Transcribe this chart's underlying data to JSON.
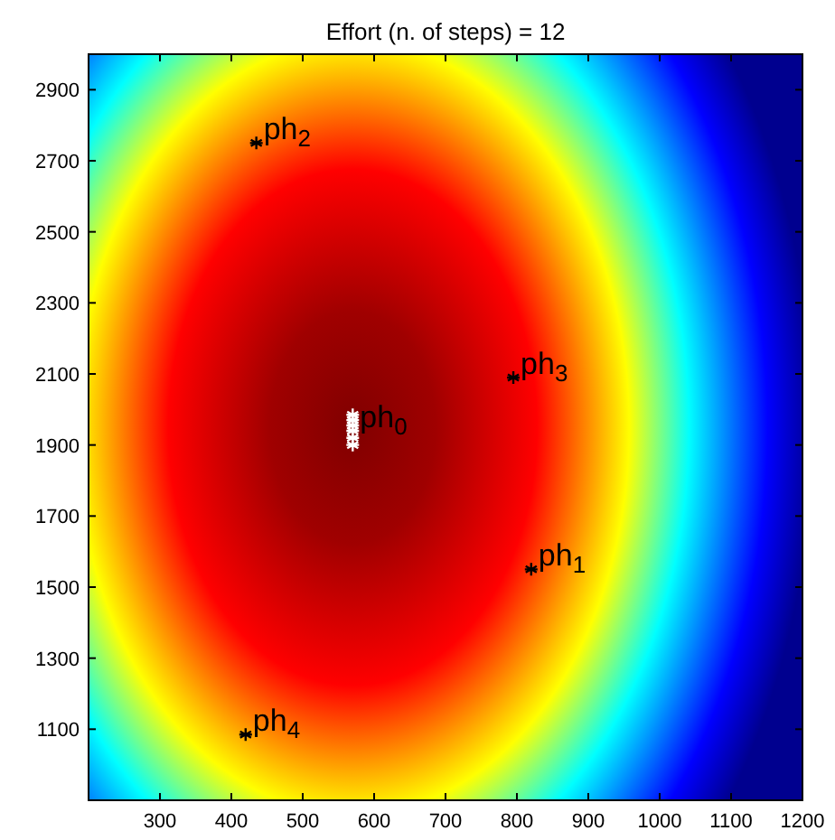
{
  "chart_data": {
    "type": "scatter",
    "title": "Effort (n. of steps) = 12",
    "xlim": [
      200,
      1200
    ],
    "ylim": [
      900,
      3000
    ],
    "xticks": [
      300,
      400,
      500,
      600,
      700,
      800,
      900,
      1000,
      1100,
      1200
    ],
    "yticks": [
      1100,
      1300,
      1500,
      1700,
      1900,
      2100,
      2300,
      2500,
      2700,
      2900
    ],
    "marker": "cross",
    "series": [
      {
        "color": "#ffffff",
        "x": [
          570,
          570,
          570,
          570,
          570,
          570
        ],
        "values": [
          1900,
          1920,
          1940,
          1955,
          1970,
          1985
        ]
      },
      {
        "color": "#000000",
        "x": [
          435,
          795,
          820,
          420
        ],
        "values": [
          2750,
          2090,
          1550,
          1085
        ]
      }
    ],
    "annotations": [
      {
        "text": "ph$_{0}$",
        "x": 570,
        "y": 1940
      },
      {
        "text": "ph$_{1}$",
        "x": 820,
        "y": 1550
      },
      {
        "text": "ph$_{2}$",
        "x": 435,
        "y": 2750
      },
      {
        "text": "ph$_{3}$",
        "x": 795,
        "y": 2090
      },
      {
        "text": "ph$_{4}$",
        "x": 420,
        "y": 1085
      }
    ]
  }
}
